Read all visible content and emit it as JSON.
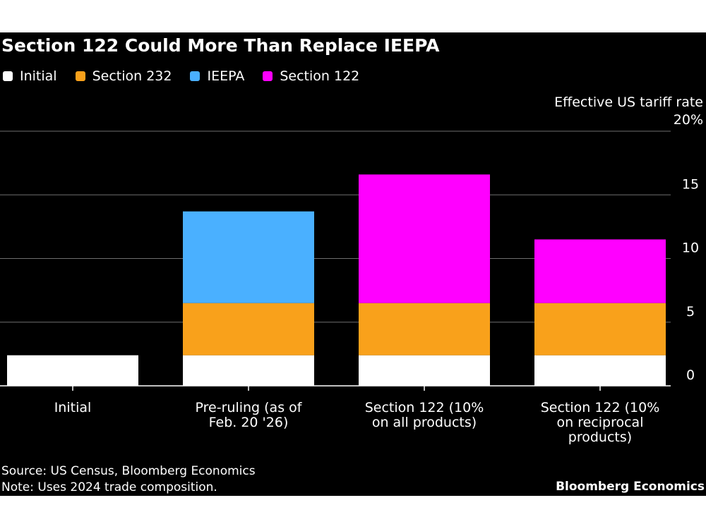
{
  "colors": {
    "background": "#000000",
    "initial": "#ffffff",
    "section232": "#f9a11b",
    "ieepa": "#4ab0ff",
    "section122": "#ff00ff",
    "grid": "#6e6e6e",
    "text": "#ffffff"
  },
  "chart_data": {
    "type": "bar",
    "stacked": true,
    "title": "Section 122 Could More Than Replace IEEPA",
    "ylabel": "Effective US tariff rate",
    "ylim": [
      0,
      20
    ],
    "yticks": [
      0,
      5,
      10,
      15,
      20
    ],
    "ytick_labels": [
      "0",
      "5",
      "10",
      "15",
      "20%"
    ],
    "y_axis_side": "right",
    "legend_position": "top-left",
    "categories": [
      [
        "Initial"
      ],
      [
        "Pre-ruling (as of",
        "Feb. 20 '26)"
      ],
      [
        "Section 122 (10%",
        "on all products)"
      ],
      [
        "Section 122 (10%",
        "on reciprocal",
        "products)"
      ]
    ],
    "series": [
      {
        "name": "Initial",
        "color_key": "initial",
        "values": [
          2.4,
          2.4,
          2.4,
          2.4
        ]
      },
      {
        "name": "Section 232",
        "color_key": "section232",
        "values": [
          0,
          4.1,
          4.1,
          4.1
        ]
      },
      {
        "name": "IEEPA",
        "color_key": "ieepa",
        "values": [
          0,
          7.2,
          0,
          0
        ]
      },
      {
        "name": "Section 122",
        "color_key": "section122",
        "values": [
          0,
          0,
          10.1,
          5.0
        ]
      }
    ]
  },
  "footer": {
    "source": "Source: US Census, Bloomberg Economics",
    "note": "Note: Uses 2024 trade composition.",
    "brand": "Bloomberg Economics"
  }
}
